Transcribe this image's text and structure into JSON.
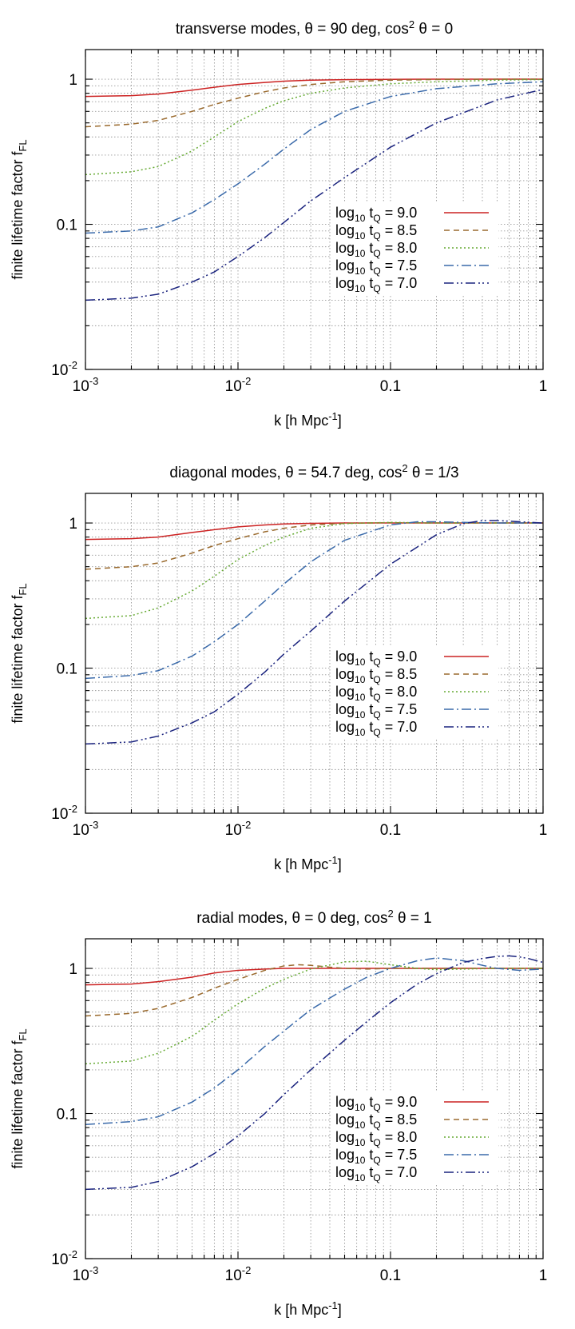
{
  "chart_data": [
    {
      "type": "line",
      "title": "transverse modes, θ = 90 deg, cos² θ = 0",
      "title_parts": {
        "pre": "transverse modes, θ = 90 deg, cos",
        "sup": "2",
        "post": " θ = 0"
      },
      "xlabel_parts": {
        "pre": "k [h Mpc",
        "sup": "-1",
        "post": "]"
      },
      "ylabel_parts": {
        "pre": "finite lifetime factor f",
        "sub": "FL"
      },
      "xscale": "log",
      "yscale": "log",
      "xlim": [
        0.001,
        1
      ],
      "ylim": [
        0.01,
        1.6
      ],
      "xticks": [
        {
          "base": "10",
          "exp": "-3"
        },
        {
          "base": "10",
          "exp": "-2"
        },
        {
          "text": "0.1"
        },
        {
          "text": "1"
        }
      ],
      "yticks": [
        {
          "base": "10",
          "exp": "-2"
        },
        {
          "text": "0.1"
        },
        {
          "text": "1"
        }
      ],
      "grid": true,
      "legend_position": "lower-right",
      "series": [
        {
          "name": "log10 tQ = 9.0",
          "label": {
            "pre": "log",
            "sub1": "10",
            "mid": " t",
            "sub2": "Q",
            "post": " = 9.0"
          },
          "color": "#cc2222",
          "dash": "solid",
          "x": [
            0.001,
            0.002,
            0.003,
            0.005,
            0.007,
            0.01,
            0.015,
            0.02,
            0.03,
            0.05,
            0.1,
            0.2,
            0.5,
            1
          ],
          "y": [
            0.76,
            0.77,
            0.79,
            0.84,
            0.88,
            0.92,
            0.95,
            0.97,
            0.985,
            0.993,
            0.998,
            1.0,
            1.0,
            1.0
          ]
        },
        {
          "name": "log10 tQ = 8.5",
          "label": {
            "pre": "log",
            "sub1": "10",
            "mid": " t",
            "sub2": "Q",
            "post": " = 8.5"
          },
          "color": "#9a6a2e",
          "dash": "7 5",
          "x": [
            0.001,
            0.002,
            0.003,
            0.005,
            0.007,
            0.01,
            0.015,
            0.02,
            0.03,
            0.05,
            0.1,
            0.2,
            0.5,
            1
          ],
          "y": [
            0.47,
            0.49,
            0.52,
            0.6,
            0.67,
            0.74,
            0.82,
            0.87,
            0.92,
            0.96,
            0.985,
            0.995,
            1.0,
            1.0
          ]
        },
        {
          "name": "log10 tQ = 8.0",
          "label": {
            "pre": "log",
            "sub1": "10",
            "mid": " t",
            "sub2": "Q",
            "post": " = 8.0"
          },
          "color": "#66aa33",
          "dash": "2 3",
          "x": [
            0.001,
            0.002,
            0.003,
            0.005,
            0.007,
            0.01,
            0.015,
            0.02,
            0.03,
            0.05,
            0.1,
            0.2,
            0.5,
            1
          ],
          "y": [
            0.22,
            0.23,
            0.25,
            0.32,
            0.4,
            0.51,
            0.63,
            0.71,
            0.8,
            0.87,
            0.93,
            0.96,
            0.985,
            0.995
          ]
        },
        {
          "name": "log10 tQ = 7.5",
          "label": {
            "pre": "log",
            "sub1": "10",
            "mid": " t",
            "sub2": "Q",
            "post": " = 7.5"
          },
          "color": "#3a6aaa",
          "dash": "12 4 2 4",
          "x": [
            0.001,
            0.002,
            0.003,
            0.005,
            0.007,
            0.01,
            0.015,
            0.02,
            0.03,
            0.05,
            0.1,
            0.2,
            0.5,
            1
          ],
          "y": [
            0.087,
            0.09,
            0.096,
            0.12,
            0.148,
            0.19,
            0.26,
            0.33,
            0.45,
            0.6,
            0.76,
            0.86,
            0.93,
            0.96
          ]
        },
        {
          "name": "log10 tQ = 7.0",
          "label": {
            "pre": "log",
            "sub1": "10",
            "mid": " t",
            "sub2": "Q",
            "post": " = 7.0"
          },
          "color": "#1a237e",
          "dash": "12 4 2 3 2 4",
          "x": [
            0.001,
            0.002,
            0.003,
            0.005,
            0.007,
            0.01,
            0.015,
            0.02,
            0.03,
            0.05,
            0.1,
            0.2,
            0.5,
            1
          ],
          "y": [
            0.03,
            0.031,
            0.033,
            0.04,
            0.047,
            0.06,
            0.081,
            0.103,
            0.145,
            0.21,
            0.34,
            0.5,
            0.72,
            0.85
          ]
        }
      ]
    },
    {
      "type": "line",
      "title": "diagonal modes, θ = 54.7 deg, cos² θ = 1/3",
      "title_parts": {
        "pre": "diagonal modes, θ = 54.7 deg, cos",
        "sup": "2",
        "post": " θ = 1/3"
      },
      "xlabel_parts": {
        "pre": "k [h Mpc",
        "sup": "-1",
        "post": "]"
      },
      "ylabel_parts": {
        "pre": "finite lifetime factor f",
        "sub": "FL"
      },
      "xscale": "log",
      "yscale": "log",
      "xlim": [
        0.001,
        1
      ],
      "ylim": [
        0.01,
        1.6
      ],
      "xticks": [
        {
          "base": "10",
          "exp": "-3"
        },
        {
          "base": "10",
          "exp": "-2"
        },
        {
          "text": "0.1"
        },
        {
          "text": "1"
        }
      ],
      "yticks": [
        {
          "base": "10",
          "exp": "-2"
        },
        {
          "text": "0.1"
        },
        {
          "text": "1"
        }
      ],
      "grid": true,
      "legend_position": "lower-right",
      "series": [
        {
          "name": "log10 tQ = 9.0",
          "label": {
            "pre": "log",
            "sub1": "10",
            "mid": " t",
            "sub2": "Q",
            "post": " = 9.0"
          },
          "color": "#cc2222",
          "dash": "solid",
          "x": [
            0.001,
            0.002,
            0.003,
            0.005,
            0.007,
            0.01,
            0.015,
            0.02,
            0.03,
            0.05,
            0.1,
            0.2,
            0.5,
            1
          ],
          "y": [
            0.77,
            0.78,
            0.8,
            0.86,
            0.9,
            0.94,
            0.97,
            0.985,
            0.995,
            1.0,
            1.0,
            1.0,
            1.0,
            1.0
          ]
        },
        {
          "name": "log10 tQ = 8.5",
          "label": {
            "pre": "log",
            "sub1": "10",
            "mid": " t",
            "sub2": "Q",
            "post": " = 8.5"
          },
          "color": "#9a6a2e",
          "dash": "7 5",
          "x": [
            0.001,
            0.002,
            0.003,
            0.005,
            0.007,
            0.01,
            0.015,
            0.02,
            0.03,
            0.05,
            0.1,
            0.2,
            0.5,
            1
          ],
          "y": [
            0.48,
            0.5,
            0.53,
            0.62,
            0.7,
            0.78,
            0.87,
            0.92,
            0.97,
            0.995,
            1.005,
            1.0,
            1.0,
            1.0
          ]
        },
        {
          "name": "log10 tQ = 8.0",
          "label": {
            "pre": "log",
            "sub1": "10",
            "mid": " t",
            "sub2": "Q",
            "post": " = 8.0"
          },
          "color": "#66aa33",
          "dash": "2 3",
          "x": [
            0.001,
            0.002,
            0.003,
            0.005,
            0.007,
            0.01,
            0.015,
            0.02,
            0.03,
            0.05,
            0.1,
            0.2,
            0.5,
            1
          ],
          "y": [
            0.22,
            0.23,
            0.26,
            0.34,
            0.43,
            0.56,
            0.7,
            0.8,
            0.92,
            0.99,
            1.01,
            1.0,
            1.0,
            1.0
          ]
        },
        {
          "name": "log10 tQ = 7.5",
          "label": {
            "pre": "log",
            "sub1": "10",
            "mid": " t",
            "sub2": "Q",
            "post": " = 7.5"
          },
          "color": "#3a6aaa",
          "dash": "12 4 2 4",
          "x": [
            0.001,
            0.002,
            0.003,
            0.005,
            0.007,
            0.01,
            0.015,
            0.02,
            0.03,
            0.05,
            0.1,
            0.15,
            0.2,
            0.3,
            0.5,
            0.7,
            1
          ],
          "y": [
            0.085,
            0.089,
            0.096,
            0.121,
            0.152,
            0.2,
            0.29,
            0.38,
            0.54,
            0.76,
            0.97,
            1.02,
            1.02,
            1.01,
            1.0,
            1.0,
            1.0
          ]
        },
        {
          "name": "log10 tQ = 7.0",
          "label": {
            "pre": "log",
            "sub1": "10",
            "mid": " t",
            "sub2": "Q",
            "post": " = 7.0"
          },
          "color": "#1a237e",
          "dash": "12 4 2 3 2 4",
          "x": [
            0.001,
            0.002,
            0.003,
            0.005,
            0.007,
            0.01,
            0.015,
            0.02,
            0.03,
            0.05,
            0.1,
            0.2,
            0.3,
            0.4,
            0.5,
            0.7,
            1
          ],
          "y": [
            0.03,
            0.031,
            0.034,
            0.042,
            0.05,
            0.066,
            0.094,
            0.125,
            0.18,
            0.29,
            0.52,
            0.83,
            0.99,
            1.04,
            1.04,
            1.02,
            1.0
          ]
        }
      ]
    },
    {
      "type": "line",
      "title": "radial modes, θ = 0 deg, cos² θ = 1",
      "title_parts": {
        "pre": "radial modes, θ = 0 deg, cos",
        "sup": "2",
        "post": " θ = 1"
      },
      "xlabel_parts": {
        "pre": "k [h Mpc",
        "sup": "-1",
        "post": "]"
      },
      "ylabel_parts": {
        "pre": "finite lifetime factor f",
        "sub": "FL"
      },
      "xscale": "log",
      "yscale": "log",
      "xlim": [
        0.001,
        1
      ],
      "ylim": [
        0.01,
        1.6
      ],
      "xticks": [
        {
          "base": "10",
          "exp": "-3"
        },
        {
          "base": "10",
          "exp": "-2"
        },
        {
          "text": "0.1"
        },
        {
          "text": "1"
        }
      ],
      "yticks": [
        {
          "base": "10",
          "exp": "-2"
        },
        {
          "text": "0.1"
        },
        {
          "text": "1"
        }
      ],
      "grid": true,
      "legend_position": "lower-right",
      "series": [
        {
          "name": "log10 tQ = 9.0",
          "label": {
            "pre": "log",
            "sub1": "10",
            "mid": " t",
            "sub2": "Q",
            "post": " = 9.0"
          },
          "color": "#cc2222",
          "dash": "solid",
          "x": [
            0.001,
            0.002,
            0.003,
            0.005,
            0.007,
            0.01,
            0.015,
            0.02,
            0.03,
            0.05,
            0.1,
            0.2,
            0.5,
            1
          ],
          "y": [
            0.77,
            0.78,
            0.81,
            0.87,
            0.93,
            0.97,
            0.99,
            1.0,
            1.0,
            1.0,
            1.0,
            1.0,
            1.0,
            1.0
          ]
        },
        {
          "name": "log10 tQ = 8.5",
          "label": {
            "pre": "log",
            "sub1": "10",
            "mid": " t",
            "sub2": "Q",
            "post": " = 8.5"
          },
          "color": "#9a6a2e",
          "dash": "7 5",
          "x": [
            0.001,
            0.002,
            0.003,
            0.005,
            0.007,
            0.01,
            0.015,
            0.02,
            0.025,
            0.03,
            0.04,
            0.05,
            0.07,
            0.1,
            0.2,
            0.5,
            1
          ],
          "y": [
            0.47,
            0.49,
            0.53,
            0.63,
            0.73,
            0.84,
            0.97,
            1.04,
            1.06,
            1.05,
            1.02,
            1.0,
            0.99,
            1.0,
            1.0,
            1.0,
            1.0
          ]
        },
        {
          "name": "log10 tQ = 8.0",
          "label": {
            "pre": "log",
            "sub1": "10",
            "mid": " t",
            "sub2": "Q",
            "post": " = 8.0"
          },
          "color": "#66aa33",
          "dash": "2 3",
          "x": [
            0.001,
            0.002,
            0.003,
            0.005,
            0.007,
            0.01,
            0.015,
            0.02,
            0.03,
            0.05,
            0.07,
            0.1,
            0.15,
            0.2,
            0.3,
            0.5,
            1
          ],
          "y": [
            0.22,
            0.23,
            0.26,
            0.34,
            0.44,
            0.57,
            0.73,
            0.84,
            0.99,
            1.11,
            1.12,
            1.06,
            1.0,
            0.98,
            0.99,
            1.0,
            1.0
          ]
        },
        {
          "name": "log10 tQ = 7.5",
          "label": {
            "pre": "log",
            "sub1": "10",
            "mid": " t",
            "sub2": "Q",
            "post": " = 7.5"
          },
          "color": "#3a6aaa",
          "dash": "12 4 2 4",
          "x": [
            0.001,
            0.002,
            0.003,
            0.005,
            0.007,
            0.01,
            0.015,
            0.02,
            0.03,
            0.05,
            0.07,
            0.1,
            0.15,
            0.2,
            0.3,
            0.4,
            0.5,
            0.7,
            1
          ],
          "y": [
            0.084,
            0.088,
            0.095,
            0.12,
            0.15,
            0.2,
            0.29,
            0.37,
            0.52,
            0.72,
            0.87,
            1.0,
            1.13,
            1.18,
            1.13,
            1.05,
            1.0,
            0.97,
            0.99
          ]
        },
        {
          "name": "log10 tQ = 7.0",
          "label": {
            "pre": "log",
            "sub1": "10",
            "mid": " t",
            "sub2": "Q",
            "post": " = 7.0"
          },
          "color": "#1a237e",
          "dash": "12 4 2 3 2 4",
          "x": [
            0.001,
            0.002,
            0.003,
            0.005,
            0.007,
            0.01,
            0.015,
            0.02,
            0.03,
            0.05,
            0.07,
            0.1,
            0.15,
            0.2,
            0.3,
            0.4,
            0.5,
            0.6,
            0.7,
            0.8,
            1
          ],
          "y": [
            0.03,
            0.031,
            0.034,
            0.043,
            0.053,
            0.07,
            0.1,
            0.135,
            0.2,
            0.32,
            0.43,
            0.58,
            0.78,
            0.92,
            1.1,
            1.17,
            1.21,
            1.22,
            1.2,
            1.17,
            1.1
          ]
        }
      ]
    }
  ]
}
